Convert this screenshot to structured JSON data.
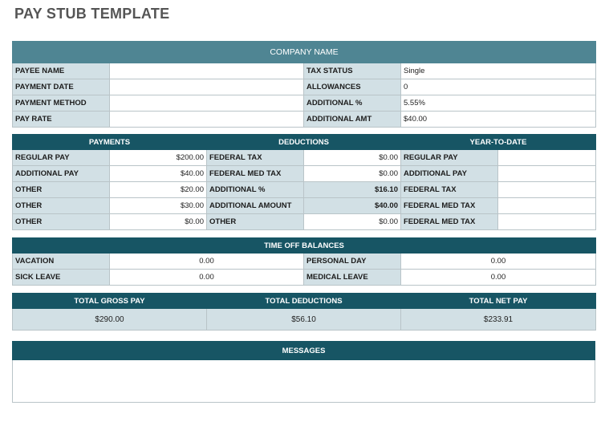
{
  "title": "PAY STUB TEMPLATE",
  "company": {
    "name": "COMPANY NAME",
    "rows": [
      {
        "label1": "PAYEE NAME",
        "value1": "",
        "label2": "TAX STATUS",
        "value2": "Single"
      },
      {
        "label1": "PAYMENT DATE",
        "value1": "",
        "label2": "ALLOWANCES",
        "value2": "0"
      },
      {
        "label1": "PAYMENT METHOD",
        "value1": "",
        "label2": "ADDITIONAL %",
        "value2": "5.55%"
      },
      {
        "label1": "PAY RATE",
        "value1": "",
        "label2": "ADDITIONAL AMT",
        "value2": "$40.00"
      }
    ]
  },
  "headers": {
    "payments": "PAYMENTS",
    "deductions": "DEDUCTIONS",
    "ytd": "YEAR-TO-DATE"
  },
  "earnings_rows": [
    {
      "pay_label": "REGULAR PAY",
      "pay_value": "$200.00",
      "ded_label": "FEDERAL TAX",
      "ded_value": "$0.00",
      "ytd_label": "REGULAR PAY",
      "ytd_value": ""
    },
    {
      "pay_label": "ADDITIONAL PAY",
      "pay_value": "$40.00",
      "ded_label": "FEDERAL MED TAX",
      "ded_value": "$0.00",
      "ytd_label": "ADDITIONAL PAY",
      "ytd_value": ""
    },
    {
      "pay_label": "OTHER",
      "pay_value": "$20.00",
      "ded_label": "ADDITIONAL %",
      "ded_value": "$16.10",
      "ytd_label": "FEDERAL TAX",
      "ytd_value": ""
    },
    {
      "pay_label": "OTHER",
      "pay_value": "$30.00",
      "ded_label": "ADDITIONAL AMOUNT",
      "ded_value": "$40.00",
      "ytd_label": "FEDERAL MED TAX",
      "ytd_value": ""
    },
    {
      "pay_label": "OTHER",
      "pay_value": "$0.00",
      "ded_label": "OTHER",
      "ded_value": "$0.00",
      "ytd_label": "FEDERAL MED TAX",
      "ytd_value": ""
    }
  ],
  "time_off": {
    "header": "TIME OFF BALANCES",
    "rows": [
      {
        "label1": "VACATION",
        "value1": "0.00",
        "label2": "PERSONAL DAY",
        "value2": "0.00"
      },
      {
        "label1": "SICK LEAVE",
        "value1": "0.00",
        "label2": "MEDICAL LEAVE",
        "value2": "0.00"
      }
    ]
  },
  "totals": {
    "gross_label": "TOTAL GROSS PAY",
    "gross_value": "$290.00",
    "deductions_label": "TOTAL DEDUCTIONS",
    "deductions_value": "$56.10",
    "net_label": "TOTAL NET PAY",
    "net_value": "$233.91"
  },
  "messages": {
    "header": "MESSAGES",
    "body": ""
  },
  "colors": {
    "header_dark": "#175564",
    "header_company": "#4f8593",
    "label_bg": "#d2e0e5",
    "border": "#b9c4c8"
  }
}
